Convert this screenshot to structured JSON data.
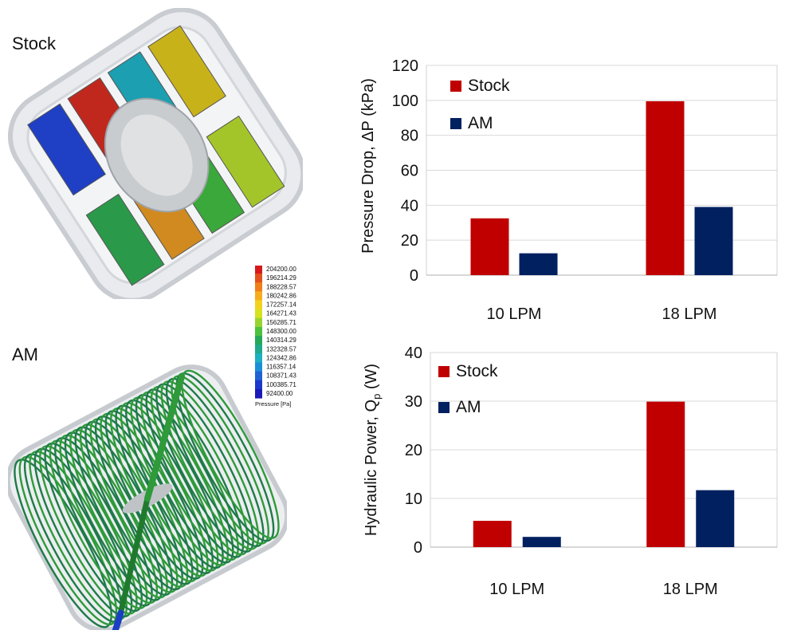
{
  "panels": {
    "stock_label": "Stock",
    "am_label": "AM"
  },
  "colorbar": {
    "title": "Pressure [Pa]",
    "ticks": [
      "204200.00",
      "196214.29",
      "188228.57",
      "180242.86",
      "172257.14",
      "164271.43",
      "156285.71",
      "148300.00",
      "140314.29",
      "132328.57",
      "124342.86",
      "116357.14",
      "108371.43",
      "100385.71",
      "92400.00"
    ],
    "colors": [
      "#d7191c",
      "#e4501b",
      "#f07f1a",
      "#f6ad1c",
      "#f2d21f",
      "#d4e21f",
      "#98d431",
      "#4cc23c",
      "#25a85a",
      "#20a98d",
      "#1dafc2",
      "#1a8fd8",
      "#1f62d4",
      "#1c38cc",
      "#1a1ab8"
    ]
  },
  "renders": {
    "stock": {
      "icon": "stock-manifold-pressure-render",
      "stripe_colors": [
        "#1f3fc4",
        "#c0281e",
        "#1c9fb0",
        "#c8b21a",
        "#2a9a4a",
        "#d08a20",
        "#3aa83a",
        "#a3c52a"
      ]
    },
    "am": {
      "icon": "am-coil-manifold-pressure-render",
      "coil_color": "#2e9a3a"
    }
  },
  "chart_data": [
    {
      "type": "bar",
      "categories": [
        "10 LPM",
        "18 LPM"
      ],
      "series": [
        {
          "name": "Stock",
          "values": [
            32.5,
            99.5
          ],
          "color": "#c00000"
        },
        {
          "name": "AM",
          "values": [
            12.5,
            39
          ],
          "color": "#002060"
        }
      ],
      "title": "",
      "xlabel": "",
      "ylabel": "Pressure Drop, ΔP (kPa)",
      "ylim": [
        0,
        120
      ],
      "yticks": [
        0,
        20,
        40,
        60,
        80,
        100,
        120
      ],
      "grid": true,
      "legend": "top-left"
    },
    {
      "type": "bar",
      "categories": [
        "10 LPM",
        "18 LPM"
      ],
      "series": [
        {
          "name": "Stock",
          "values": [
            5.4,
            29.9
          ],
          "color": "#c00000"
        },
        {
          "name": "AM",
          "values": [
            2.1,
            11.7
          ],
          "color": "#002060"
        }
      ],
      "title": "",
      "xlabel": "",
      "ylabel": "Hydraulic Power, Qp (W)",
      "ylabel_main": "Hydraulic Power, Q",
      "ylabel_sub": "p",
      "ylabel_unit": " (W)",
      "ylim": [
        0,
        40
      ],
      "yticks": [
        0,
        10,
        20,
        30,
        40
      ],
      "grid": true,
      "legend": "top-left"
    }
  ]
}
